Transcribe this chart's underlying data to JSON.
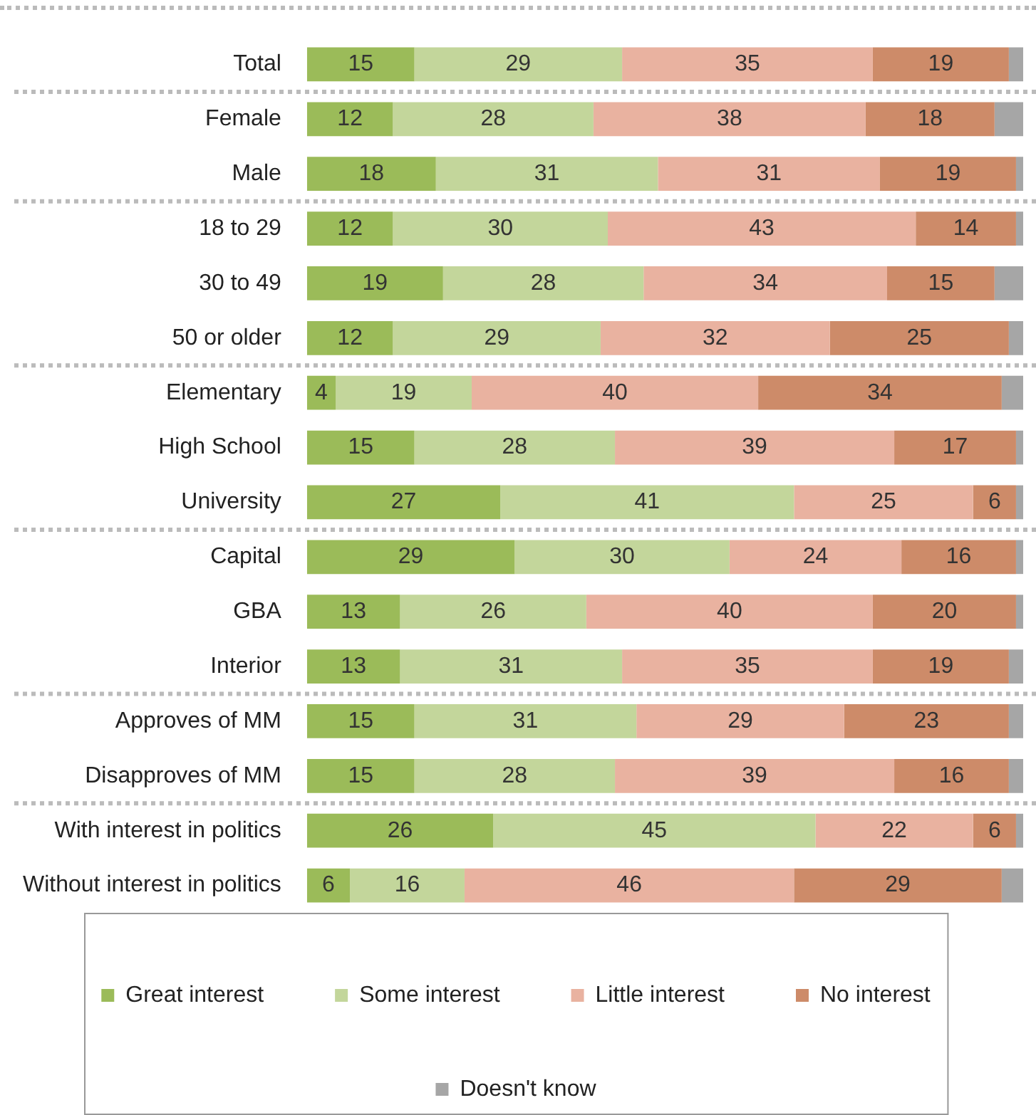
{
  "chart_data": {
    "type": "bar",
    "orientation": "horizontal",
    "stacked": true,
    "legend": "bottom",
    "tick_labels": "y",
    "xlim": [
      0,
      100
    ],
    "categories": [
      "Total",
      "Female",
      "Male",
      "18 to 29",
      "30 to 49",
      "50 or older",
      "Elementary",
      "High School",
      "University",
      "Capital",
      "GBA",
      "Interior",
      "Approves of MM",
      "Disapproves of MM",
      "With interest in politics",
      "Without interest in politics"
    ],
    "series": [
      {
        "name": "Great interest",
        "color": "#9bbb59",
        "values": [
          15,
          12,
          18,
          12,
          19,
          12,
          4,
          15,
          27,
          29,
          13,
          13,
          15,
          15,
          26,
          6
        ],
        "value_labels": [
          "15",
          "12",
          "18",
          "12",
          "19",
          "12",
          "4",
          "15",
          "27",
          "29",
          "13",
          "13",
          "15",
          "15",
          "26",
          "6"
        ]
      },
      {
        "name": "Some interest",
        "color": "#c3d69b",
        "values": [
          29,
          28,
          31,
          30,
          28,
          29,
          19,
          28,
          41,
          30,
          26,
          31,
          31,
          28,
          45,
          16
        ],
        "value_labels": [
          "29",
          "28",
          "31",
          "30",
          "28",
          "29",
          "19",
          "28",
          "41",
          "30",
          "26",
          "31",
          "31",
          "28",
          "45",
          "16"
        ]
      },
      {
        "name": "Little interest",
        "color": "#e9b2a0",
        "values": [
          35,
          38,
          31,
          43,
          34,
          32,
          40,
          39,
          25,
          24,
          40,
          35,
          29,
          39,
          22,
          46
        ],
        "value_labels": [
          "35",
          "38",
          "31",
          "43",
          "34",
          "32",
          "40",
          "39",
          "25",
          "24",
          "40",
          "35",
          "29",
          "39",
          "22",
          "46"
        ]
      },
      {
        "name": "No interest",
        "color": "#cd8b69",
        "values": [
          19,
          18,
          19,
          14,
          15,
          25,
          34,
          17,
          6,
          16,
          20,
          19,
          23,
          16,
          6,
          29
        ],
        "value_labels": [
          "19",
          "18",
          "19",
          "14",
          "15",
          "25",
          "34",
          "17",
          "6",
          "16",
          "20",
          "19",
          "23",
          "16",
          "6",
          "29"
        ]
      },
      {
        "name": "Doesn't know",
        "color": "#a6a6a6",
        "values": [
          2,
          4,
          1,
          1,
          4,
          2,
          3,
          1,
          1,
          1,
          1,
          2,
          2,
          2,
          1,
          3
        ]
      }
    ]
  }
}
